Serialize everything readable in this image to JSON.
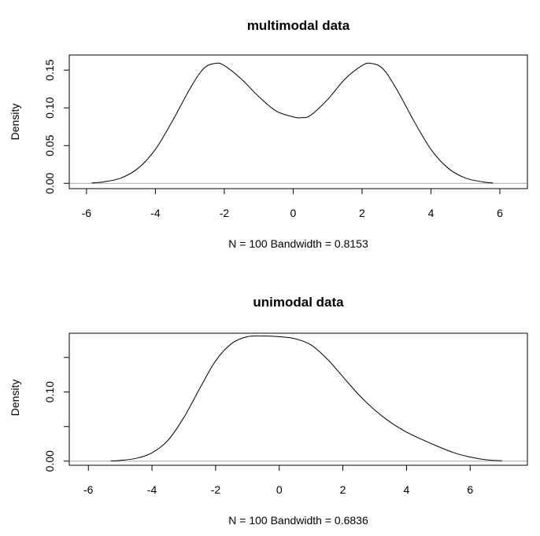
{
  "chart_data": [
    {
      "type": "line",
      "title": "multimodal data",
      "xlabel": "N = 100   Bandwidth = 0.8153",
      "ylabel": "Density",
      "xlim": [
        -6.5,
        6.8
      ],
      "ylim": [
        -0.007,
        0.17
      ],
      "xticks": [
        -6,
        -4,
        -2,
        0,
        2,
        4,
        6
      ],
      "yticks": [
        0.0,
        0.05,
        0.1,
        0.15
      ],
      "ytick_labels": [
        "0.00",
        "0.05",
        "0.10",
        "0.15"
      ],
      "grid": false,
      "baseline": 0,
      "colors": {
        "curve": "#000000",
        "baseline": "#bfbfbf"
      },
      "x": [
        -5.85,
        -5.5,
        -5.0,
        -4.5,
        -4.0,
        -3.5,
        -3.0,
        -2.6,
        -2.25,
        -2.0,
        -1.5,
        -1.0,
        -0.5,
        0.0,
        0.25,
        0.5,
        1.0,
        1.5,
        2.0,
        2.25,
        2.6,
        3.0,
        3.5,
        4.0,
        4.5,
        5.0,
        5.5,
        5.8
      ],
      "y": [
        0.0005,
        0.002,
        0.007,
        0.02,
        0.045,
        0.083,
        0.125,
        0.152,
        0.159,
        0.156,
        0.138,
        0.115,
        0.096,
        0.088,
        0.087,
        0.09,
        0.111,
        0.138,
        0.156,
        0.159,
        0.152,
        0.125,
        0.083,
        0.045,
        0.02,
        0.007,
        0.002,
        0.0005
      ]
    },
    {
      "type": "line",
      "title": "unimodal data",
      "xlabel": "N = 100   Bandwidth = 0.6836",
      "ylabel": "Density",
      "xlim": [
        -6.6,
        7.8
      ],
      "ylim": [
        -0.006,
        0.185
      ],
      "xticks": [
        -6,
        -4,
        -2,
        0,
        2,
        4,
        6
      ],
      "yticks": [
        0.0,
        0.05,
        0.1,
        0.15
      ],
      "ytick_labels": [
        "0.00",
        "",
        "0.10",
        ""
      ],
      "grid": false,
      "baseline": 0,
      "colors": {
        "curve": "#000000",
        "baseline": "#bfbfbf"
      },
      "x": [
        -5.3,
        -5.0,
        -4.5,
        -4.0,
        -3.5,
        -3.0,
        -2.5,
        -2.0,
        -1.5,
        -1.0,
        -0.5,
        0.0,
        0.5,
        1.0,
        1.5,
        2.0,
        2.5,
        3.0,
        3.5,
        4.0,
        4.5,
        5.0,
        5.5,
        6.0,
        6.5,
        7.0
      ],
      "y": [
        0.0003,
        0.001,
        0.004,
        0.012,
        0.03,
        0.063,
        0.105,
        0.145,
        0.17,
        0.18,
        0.181,
        0.18,
        0.177,
        0.168,
        0.148,
        0.122,
        0.096,
        0.074,
        0.056,
        0.042,
        0.031,
        0.021,
        0.012,
        0.006,
        0.002,
        0.0005
      ]
    }
  ]
}
